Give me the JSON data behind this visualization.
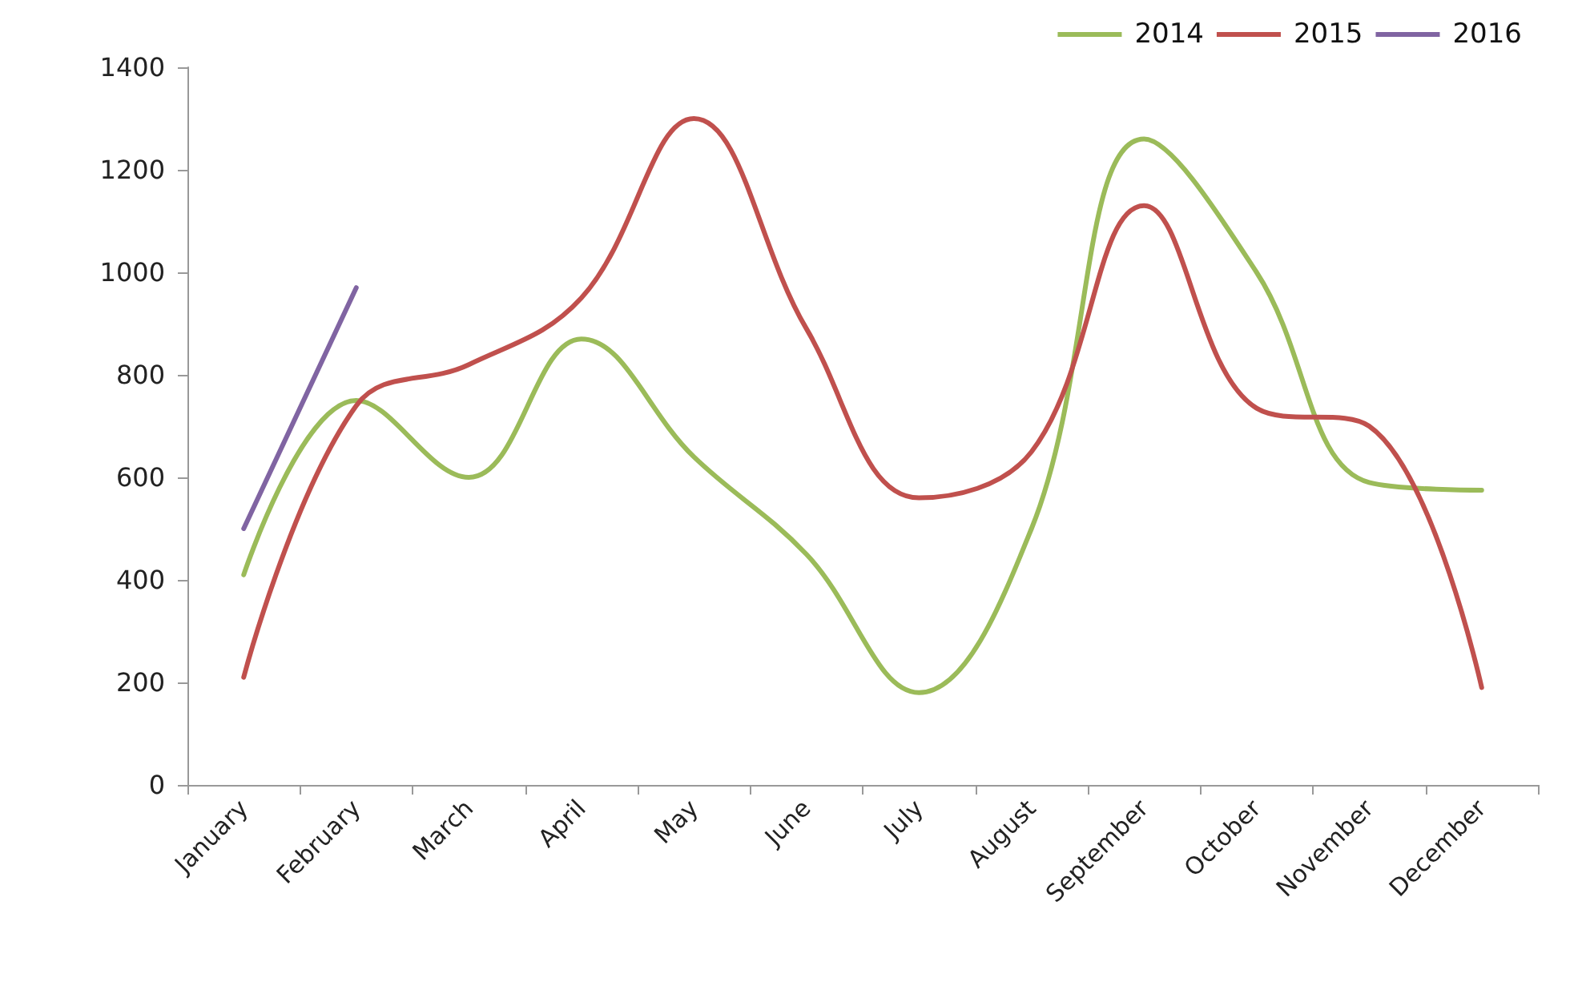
{
  "chart_data": {
    "type": "line",
    "categories": [
      "January",
      "February",
      "March",
      "April",
      "May",
      "June",
      "July",
      "August",
      "September",
      "October",
      "November",
      "December"
    ],
    "series": [
      {
        "name": "2014",
        "color": "#9bbb59",
        "values": [
          410,
          750,
          600,
          870,
          640,
          450,
          180,
          500,
          1260,
          1000,
          590,
          575
        ]
      },
      {
        "name": "2015",
        "color": "#c0504d",
        "values": [
          210,
          740,
          820,
          950,
          1300,
          890,
          560,
          650,
          1130,
          735,
          700,
          190
        ]
      },
      {
        "name": "2016",
        "color": "#8064a2",
        "values": [
          500,
          970,
          null,
          null,
          null,
          null,
          null,
          null,
          null,
          null,
          null,
          null
        ]
      }
    ],
    "ylim": [
      0,
      1400
    ],
    "yticks": [
      0,
      200,
      400,
      600,
      800,
      1000,
      1200,
      1400
    ],
    "grid": false,
    "legend": "top right",
    "marker": "none",
    "line_style": "solid"
  }
}
